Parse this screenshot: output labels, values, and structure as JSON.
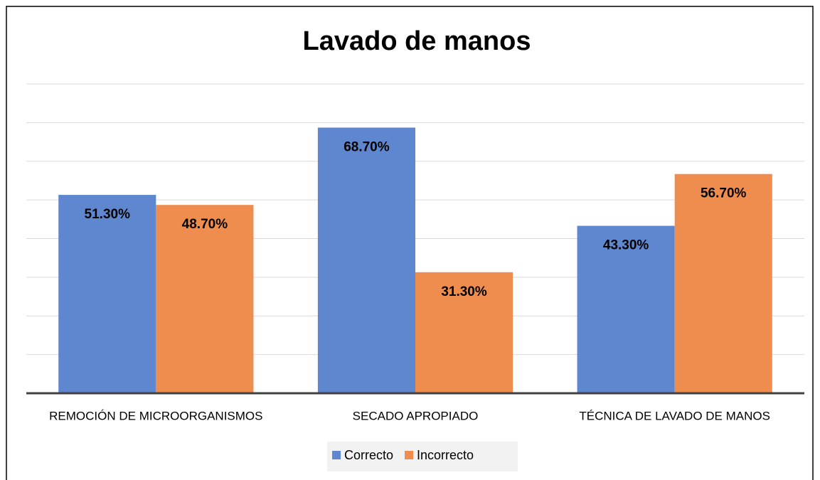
{
  "chart_data": {
    "type": "bar",
    "title": "Lavado de manos",
    "categories": [
      "REMOCIÓN DE MICROORGANISMOS",
      "SECADO APROPIADO",
      "TÉCNICA DE LAVADO DE MANOS"
    ],
    "series": [
      {
        "name": "Correcto",
        "color": "#5f87cf",
        "values": [
          51.3,
          68.7,
          43.3
        ],
        "value_labels": [
          "51.30%",
          "68.70%",
          "43.30%"
        ]
      },
      {
        "name": "Incorrecto",
        "color": "#ef8d4f",
        "values": [
          48.7,
          31.3,
          56.7
        ],
        "value_labels": [
          "48.70%",
          "31.30%",
          "56.70%"
        ]
      }
    ],
    "ylim": [
      0,
      80
    ],
    "yticks": [
      0,
      10,
      20,
      30,
      40,
      50,
      60,
      70,
      80
    ],
    "grid": true,
    "legend": "bottom"
  }
}
